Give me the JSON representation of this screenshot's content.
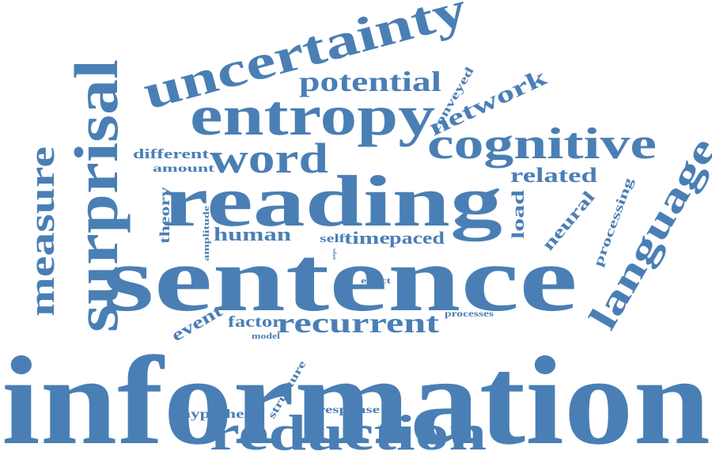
{
  "word_cloud": {
    "color": "#4a7fb5",
    "background": "#ffffff",
    "words": [
      "information",
      "sentence",
      "reading",
      "reduction",
      "entropy",
      "uncertainty",
      "surprisal",
      "cognitive",
      "language",
      "measure",
      "word",
      "recurrent",
      "potential",
      "network",
      "related",
      "human",
      "time",
      "paced",
      "self",
      "load",
      "neural",
      "processing",
      "theory",
      "different",
      "amount",
      "conveyed",
      "event",
      "factor",
      "model",
      "structure",
      "hypothesi",
      "response",
      "processes",
      "effect",
      "amplitude",
      "erps"
    ]
  }
}
